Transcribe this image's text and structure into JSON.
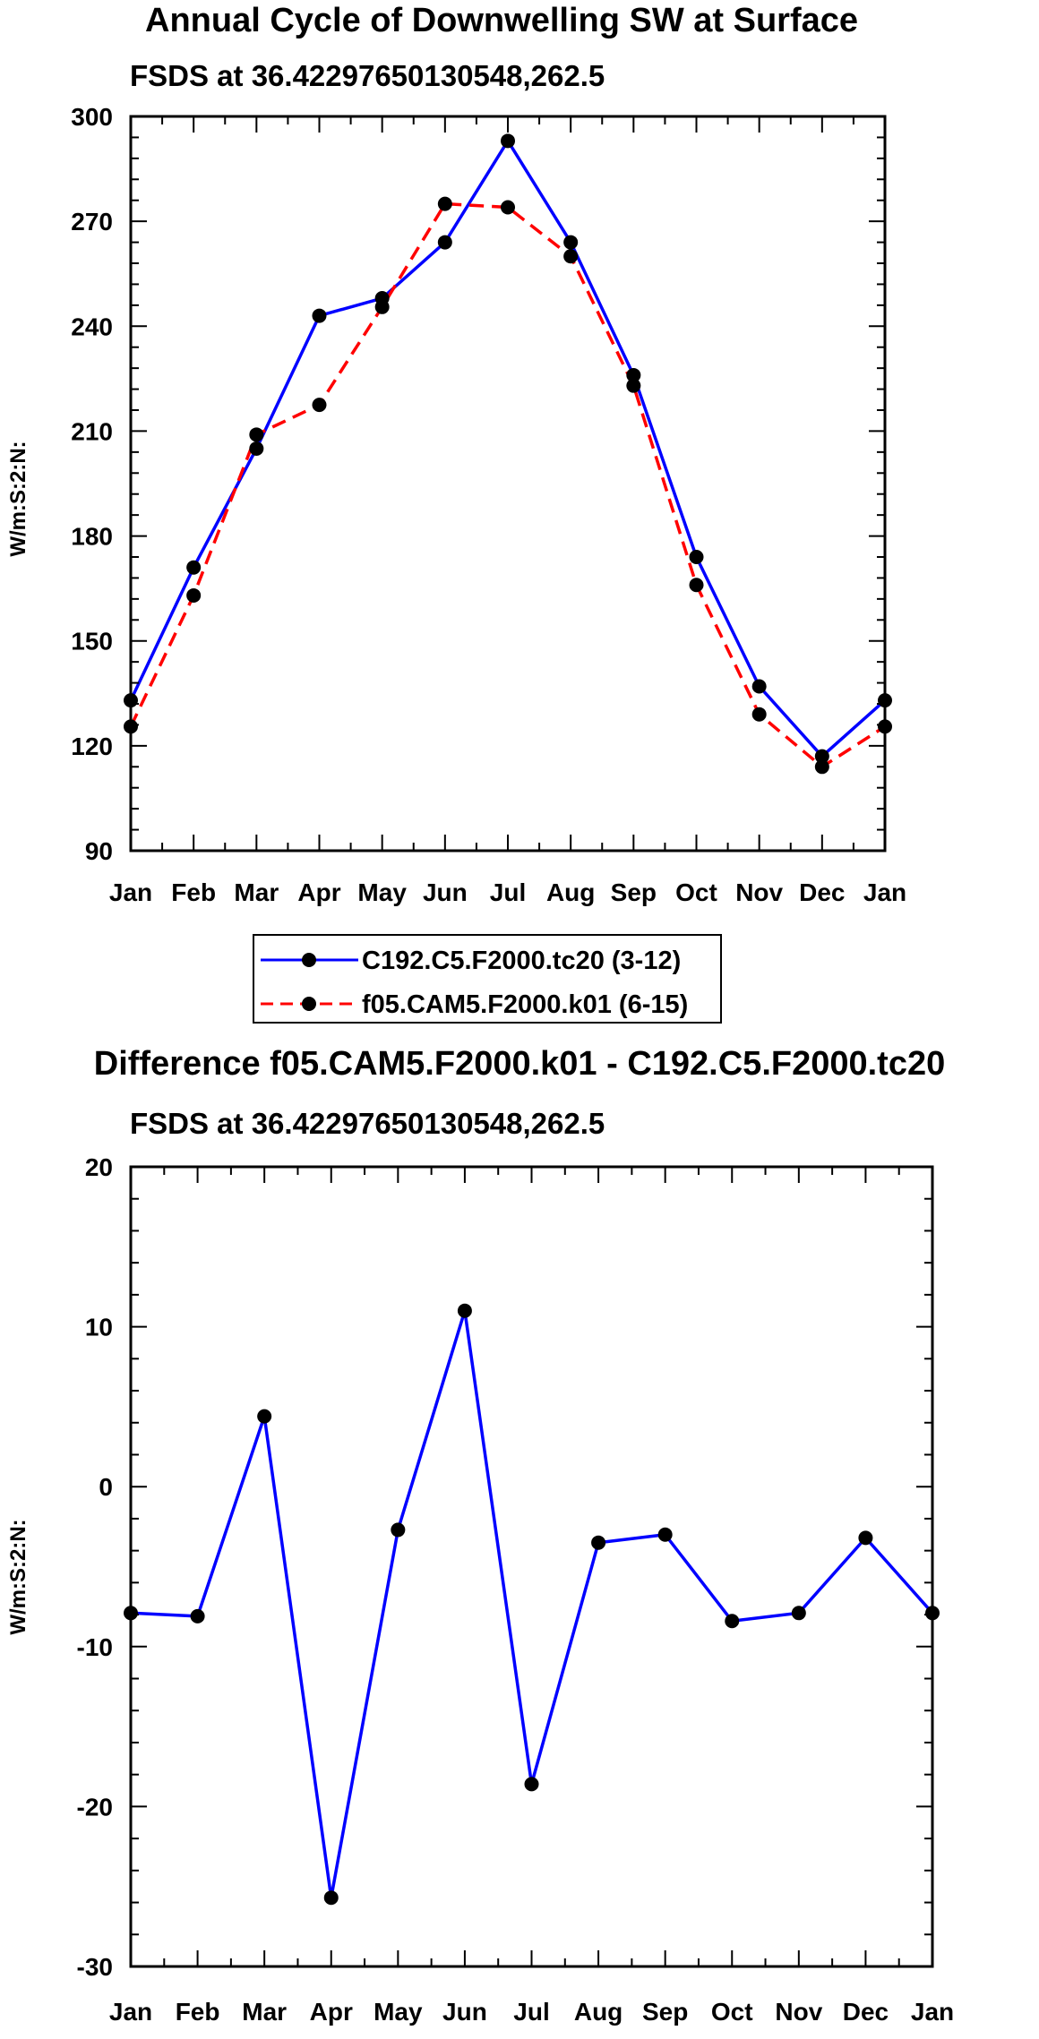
{
  "chart_data": [
    {
      "type": "line",
      "title": "Annual Cycle of Downwelling SW at Surface",
      "subtitle": "FSDS at 36.42297650130548,262.5",
      "xlabel": "",
      "ylabel": "W/m:S:2:N:",
      "categories": [
        "Jan",
        "Feb",
        "Mar",
        "Apr",
        "May",
        "Jun",
        "Jul",
        "Aug",
        "Sep",
        "Oct",
        "Nov",
        "Dec",
        "Jan"
      ],
      "ylim": [
        90,
        300
      ],
      "yticks": [
        90,
        120,
        150,
        180,
        210,
        240,
        270,
        300
      ],
      "series": [
        {
          "name": "C192.C5.F2000.tc20 (3-12)",
          "color": "#0000ff",
          "dash": "solid",
          "values": [
            133,
            171,
            205,
            243,
            248,
            264,
            293,
            264,
            226,
            174,
            137,
            117,
            133
          ]
        },
        {
          "name": "f05.CAM5.F2000.k01 (6-15)",
          "color": "#ff0000",
          "dash": "dashed",
          "values": [
            125.5,
            163,
            209,
            217.5,
            245.5,
            275,
            274,
            260,
            223,
            166,
            129,
            114,
            125.5
          ]
        }
      ],
      "legend": "below"
    },
    {
      "type": "line",
      "title": "Difference f05.CAM5.F2000.k01 - C192.C5.F2000.tc20",
      "subtitle": "FSDS at 36.42297650130548,262.5",
      "xlabel": "",
      "ylabel": "W/m:S:2:N:",
      "categories": [
        "Jan",
        "Feb",
        "Mar",
        "Apr",
        "May",
        "Jun",
        "Jul",
        "Aug",
        "Sep",
        "Oct",
        "Nov",
        "Dec",
        "Jan"
      ],
      "ylim": [
        -30,
        20
      ],
      "yticks": [
        -30,
        -20,
        -10,
        0,
        10,
        20
      ],
      "series": [
        {
          "name": "Difference",
          "color": "#0000ff",
          "dash": "solid",
          "values": [
            -7.9,
            -8.1,
            4.4,
            -25.7,
            -2.7,
            11.0,
            -18.6,
            -3.5,
            -3.0,
            -8.4,
            -7.9,
            -3.2,
            -7.9
          ]
        }
      ]
    }
  ]
}
